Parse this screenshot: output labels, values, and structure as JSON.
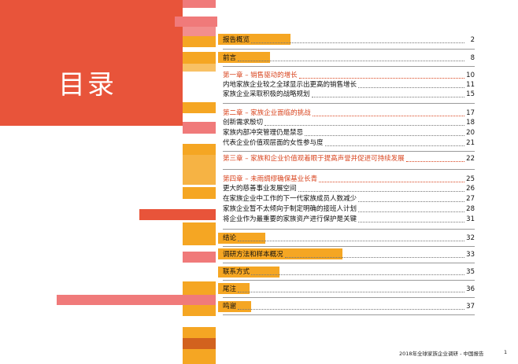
{
  "page_title": "目录",
  "colors": {
    "title_block": "#e8543a",
    "orange": "#f5a623",
    "pink": "#f07a7a",
    "dark_orange": "#d2621e",
    "chapter_text": "#d9451f"
  },
  "toc": [
    {
      "label": "报告概览",
      "page": "2",
      "type": "section"
    },
    {
      "label": "前言",
      "page": "8",
      "type": "section"
    },
    {
      "label": "第一章 – 销售驱动的增长",
      "page": "10",
      "type": "chapter"
    },
    {
      "label": "内地家族企业较之全球显示出更高的销售增长",
      "page": "11",
      "type": "item"
    },
    {
      "label": "家族企业采取积极的战略规划",
      "page": "15",
      "type": "item"
    },
    {
      "label": "第二章 – 家族企业面临的挑战",
      "page": "17",
      "type": "chapter"
    },
    {
      "label": "创新需求殷切",
      "page": "18",
      "type": "item"
    },
    {
      "label": "家族内部冲突管理仍是禁忌",
      "page": "20",
      "type": "item"
    },
    {
      "label": "代表企业价值观层面的女性参与度",
      "page": "21",
      "type": "item"
    },
    {
      "label": "第三章 – 家族和企业价值观着眼于提高声誉并促进可持续发展",
      "page": "22",
      "type": "chapter"
    },
    {
      "label": "第四章 – 未雨绸缪确保基业长青",
      "page": "25",
      "type": "chapter"
    },
    {
      "label": "更大的慈善事业发展空间",
      "page": "26",
      "type": "item"
    },
    {
      "label": "在家族企业中工作的下一代家族成员人数减少",
      "page": "27",
      "type": "item"
    },
    {
      "label": "家族企业暂不太倾向于制定明确的接班人计划",
      "page": "28",
      "type": "item"
    },
    {
      "label": "将企业作为最重要的家族资产进行保护是关键",
      "page": "31",
      "type": "item"
    },
    {
      "label": "结论",
      "page": "32",
      "type": "section"
    },
    {
      "label": "调研方法和样本概况",
      "page": "33",
      "type": "section"
    },
    {
      "label": "联系方式",
      "page": "35",
      "type": "section"
    },
    {
      "label": "尾注",
      "page": "36",
      "type": "section"
    },
    {
      "label": "鸣谢",
      "page": "37",
      "type": "section"
    }
  ],
  "footer": {
    "text": "2018年全球家族企业调研 - 中国报告",
    "page_number": "1"
  }
}
